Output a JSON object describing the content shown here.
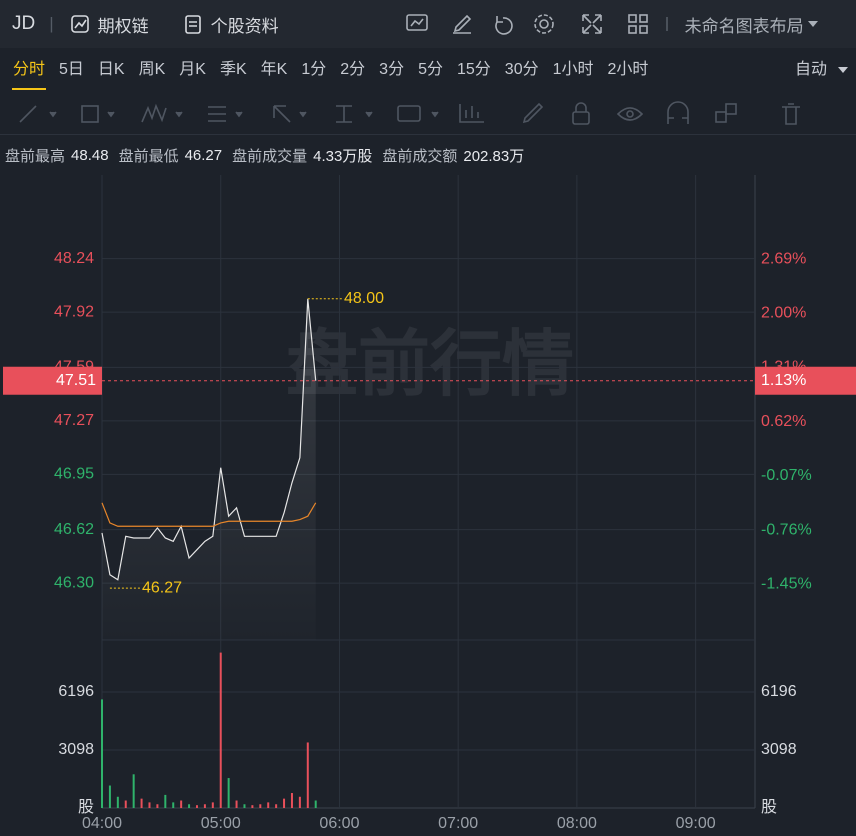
{
  "header": {
    "symbol": "JD",
    "options": "期权链",
    "profile": "个股资料",
    "layout": "未命名图表布局"
  },
  "tabs": {
    "items": [
      "分时",
      "5日",
      "日K",
      "周K",
      "月K",
      "季K",
      "年K",
      "1分",
      "2分",
      "3分",
      "5分",
      "15分",
      "30分",
      "1小时",
      "2小时"
    ],
    "active": 0,
    "scale": "自动"
  },
  "info": [
    {
      "label": "盘前最高",
      "value": "48.48"
    },
    {
      "label": "盘前最低",
      "value": "46.27"
    },
    {
      "label": "盘前成交量",
      "value": "4.33万股"
    },
    {
      "label": "盘前成交额",
      "value": "202.83万"
    }
  ],
  "chart_data": {
    "type": "line",
    "watermark": "盘前行情",
    "x": [
      "04:00",
      "04:04",
      "04:08",
      "04:12",
      "04:16",
      "04:20",
      "04:24",
      "04:28",
      "04:32",
      "04:36",
      "04:40",
      "04:44",
      "04:48",
      "04:52",
      "04:56",
      "05:00",
      "05:04",
      "05:08",
      "05:12",
      "05:16",
      "05:20",
      "05:24",
      "05:28",
      "05:32",
      "05:36",
      "05:40",
      "05:44",
      "05:48"
    ],
    "xlim": [
      "04:00",
      "09:30"
    ],
    "xticks": [
      "04:00",
      "05:00",
      "06:00",
      "07:00",
      "08:00",
      "09:00"
    ],
    "series": [
      {
        "name": "价格",
        "color": "#e6e6e6",
        "values": [
          46.6,
          46.35,
          46.32,
          46.58,
          46.57,
          46.57,
          46.57,
          46.63,
          46.57,
          46.55,
          46.64,
          46.45,
          46.5,
          46.55,
          46.58,
          46.99,
          46.7,
          46.75,
          46.58,
          46.58,
          46.58,
          46.58,
          46.58,
          46.72,
          46.9,
          47.05,
          48.0,
          47.51
        ]
      },
      {
        "name": "均价",
        "color": "#e8862a",
        "values": [
          46.78,
          46.66,
          46.64,
          46.64,
          46.64,
          46.64,
          46.64,
          46.64,
          46.64,
          46.64,
          46.64,
          46.64,
          46.64,
          46.64,
          46.64,
          46.66,
          46.67,
          46.67,
          46.67,
          46.67,
          46.67,
          46.67,
          46.67,
          46.67,
          46.67,
          46.68,
          46.7,
          46.78
        ]
      }
    ],
    "ylim": [
      45.96,
      48.74
    ],
    "yticks": [
      {
        "value": 48.24,
        "label": "48.24"
      },
      {
        "value": 47.92,
        "label": "47.92"
      },
      {
        "value": 47.59,
        "label": "47.59"
      },
      {
        "value": 47.27,
        "label": "47.27"
      },
      {
        "value": 46.95,
        "label": "46.95"
      },
      {
        "value": 46.62,
        "label": "46.62"
      },
      {
        "value": 46.3,
        "label": "46.30"
      }
    ],
    "y2lim": [
      -2.16,
      3.76
    ],
    "y2ticks": [
      {
        "value": 2.69,
        "label": "2.69%"
      },
      {
        "value": 2.0,
        "label": "2.00%"
      },
      {
        "value": 1.31,
        "label": "1.31%"
      },
      {
        "value": 0.62,
        "label": "0.62%"
      },
      {
        "value": -0.07,
        "label": "-0.07%"
      },
      {
        "value": -0.76,
        "label": "-0.76%"
      },
      {
        "value": -1.45,
        "label": "-1.45%"
      }
    ],
    "current_price": 47.51,
    "current_change": {
      "value": 1.13,
      "label": "1.13%"
    },
    "high": {
      "value": 48,
      "label": "48.00",
      "x": "05:44"
    },
    "low": {
      "value": 46.27,
      "label": "46.27",
      "x": "04:04"
    },
    "volume": {
      "values": [
        5800,
        1200,
        600,
        400,
        1800,
        500,
        300,
        200,
        700,
        300,
        400,
        200,
        150,
        200,
        300,
        8300,
        1600,
        400,
        200,
        150,
        200,
        300,
        200,
        500,
        800,
        600,
        3500,
        400
      ],
      "ylim": [
        0,
        8973
      ],
      "yticks": [
        3098,
        6196
      ],
      "unit": "股",
      "up_color": "#e8505b",
      "down_color": "#2fb36b"
    },
    "up_color": "#e8505b",
    "down_color": "#2fb36b",
    "grid": true
  }
}
